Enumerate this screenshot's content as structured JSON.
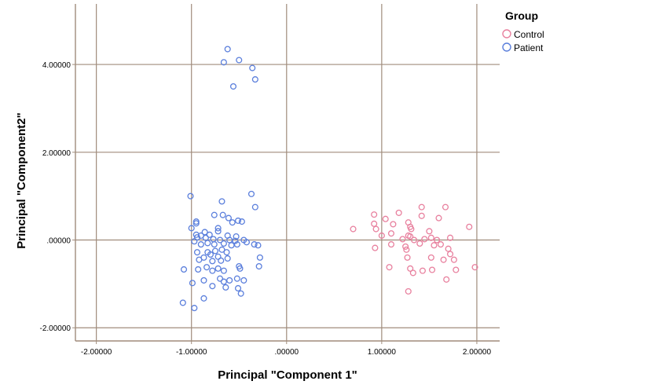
{
  "chart_data": {
    "type": "scatter",
    "xlabel": "Principal \"Component 1\"",
    "ylabel": "Principal \"Component2\"",
    "xlim": [
      -2.22,
      2.24
    ],
    "ylim": [
      -2.3,
      5.38
    ],
    "xticks": [
      -2,
      -1,
      0,
      1,
      2
    ],
    "yticks": [
      -2,
      0,
      2,
      4
    ],
    "xtick_labels": [
      "-2.00000",
      "-1.00000",
      ".00000",
      "1.00000",
      "2.00000"
    ],
    "ytick_labels": [
      "-2.00000",
      ".00000",
      "2.00000",
      "4.00000"
    ],
    "grid": true,
    "legend": {
      "title": "Group",
      "position": "top-right outside",
      "entries": [
        {
          "name": "Control",
          "color": "#e8809e"
        },
        {
          "name": "Patient",
          "color": "#5b7fdc"
        }
      ]
    },
    "series": [
      {
        "name": "Patient",
        "color": "#5b7fdc",
        "points": [
          [
            -0.62,
            4.35
          ],
          [
            -0.5,
            4.1
          ],
          [
            -0.66,
            4.05
          ],
          [
            -0.36,
            3.92
          ],
          [
            -0.33,
            3.66
          ],
          [
            -0.56,
            3.5
          ],
          [
            -1.01,
            1.0
          ],
          [
            -0.37,
            1.05
          ],
          [
            -0.68,
            0.88
          ],
          [
            -0.33,
            0.75
          ],
          [
            -0.76,
            0.57
          ],
          [
            -0.67,
            0.57
          ],
          [
            -0.61,
            0.5
          ],
          [
            -0.95,
            0.42
          ],
          [
            -0.95,
            0.38
          ],
          [
            -0.57,
            0.4
          ],
          [
            -0.51,
            0.44
          ],
          [
            -0.47,
            0.42
          ],
          [
            -1.0,
            0.27
          ],
          [
            -0.72,
            0.27
          ],
          [
            -0.72,
            0.2
          ],
          [
            -0.86,
            0.18
          ],
          [
            -0.95,
            0.12
          ],
          [
            -0.9,
            0.1
          ],
          [
            -0.81,
            0.12
          ],
          [
            -0.62,
            0.1
          ],
          [
            -0.53,
            0.08
          ],
          [
            -0.94,
            0.06
          ],
          [
            -0.85,
            0.05
          ],
          [
            -0.77,
            0.02
          ],
          [
            -0.7,
            0.0
          ],
          [
            -0.6,
            0.0
          ],
          [
            -0.54,
            -0.02
          ],
          [
            -0.45,
            0.0
          ],
          [
            -0.97,
            -0.03
          ],
          [
            -0.9,
            -0.1
          ],
          [
            -0.83,
            -0.07
          ],
          [
            -0.76,
            -0.1
          ],
          [
            -0.66,
            -0.08
          ],
          [
            -0.58,
            -0.12
          ],
          [
            -0.52,
            -0.1
          ],
          [
            -0.42,
            -0.05
          ],
          [
            -0.34,
            -0.1
          ],
          [
            -0.3,
            -0.12
          ],
          [
            -0.94,
            -0.28
          ],
          [
            -0.83,
            -0.28
          ],
          [
            -0.75,
            -0.25
          ],
          [
            -0.68,
            -0.22
          ],
          [
            -0.63,
            -0.28
          ],
          [
            -0.72,
            -0.38
          ],
          [
            -0.8,
            -0.33
          ],
          [
            -0.87,
            -0.4
          ],
          [
            -0.92,
            -0.45
          ],
          [
            -0.78,
            -0.48
          ],
          [
            -0.69,
            -0.47
          ],
          [
            -0.62,
            -0.42
          ],
          [
            -1.08,
            -0.67
          ],
          [
            -0.93,
            -0.67
          ],
          [
            -0.84,
            -0.62
          ],
          [
            -0.78,
            -0.7
          ],
          [
            -0.72,
            -0.65
          ],
          [
            -0.66,
            -0.7
          ],
          [
            -0.87,
            -0.92
          ],
          [
            -0.7,
            -0.88
          ],
          [
            -0.66,
            -0.95
          ],
          [
            -0.6,
            -0.92
          ],
          [
            -0.52,
            -0.88
          ],
          [
            -0.45,
            -0.92
          ],
          [
            -0.28,
            -0.4
          ],
          [
            -0.29,
            -0.6
          ],
          [
            -0.5,
            -0.6
          ],
          [
            -0.49,
            -0.65
          ],
          [
            -0.99,
            -0.98
          ],
          [
            -0.78,
            -1.05
          ],
          [
            -0.64,
            -1.08
          ],
          [
            -0.51,
            -1.1
          ],
          [
            -0.48,
            -1.22
          ],
          [
            -0.87,
            -1.33
          ],
          [
            -1.09,
            -1.43
          ],
          [
            -0.97,
            -1.55
          ]
        ]
      },
      {
        "name": "Control",
        "color": "#e8809e",
        "points": [
          [
            0.7,
            0.25
          ],
          [
            0.92,
            0.58
          ],
          [
            0.92,
            0.37
          ],
          [
            0.94,
            0.25
          ],
          [
            1.04,
            0.48
          ],
          [
            1.12,
            0.36
          ],
          [
            1.18,
            0.62
          ],
          [
            1.28,
            0.4
          ],
          [
            1.31,
            0.25
          ],
          [
            1.3,
            0.3
          ],
          [
            1.42,
            0.75
          ],
          [
            1.42,
            0.55
          ],
          [
            1.6,
            0.5
          ],
          [
            1.67,
            0.75
          ],
          [
            1.92,
            0.3
          ],
          [
            1.0,
            0.1
          ],
          [
            1.1,
            0.15
          ],
          [
            1.22,
            0.02
          ],
          [
            1.28,
            0.1
          ],
          [
            1.3,
            0.08
          ],
          [
            1.34,
            0.0
          ],
          [
            1.45,
            0.02
          ],
          [
            1.52,
            0.05
          ],
          [
            1.5,
            0.2
          ],
          [
            1.58,
            0.0
          ],
          [
            1.72,
            0.05
          ],
          [
            1.1,
            -0.1
          ],
          [
            1.25,
            -0.15
          ],
          [
            1.26,
            -0.22
          ],
          [
            1.4,
            -0.08
          ],
          [
            1.55,
            -0.12
          ],
          [
            1.62,
            -0.1
          ],
          [
            1.7,
            -0.2
          ],
          [
            1.27,
            -0.4
          ],
          [
            1.52,
            -0.4
          ],
          [
            1.65,
            -0.45
          ],
          [
            1.72,
            -0.32
          ],
          [
            1.76,
            -0.45
          ],
          [
            0.93,
            -0.18
          ],
          [
            1.08,
            -0.62
          ],
          [
            1.3,
            -0.65
          ],
          [
            1.33,
            -0.75
          ],
          [
            1.43,
            -0.7
          ],
          [
            1.53,
            -0.68
          ],
          [
            1.68,
            -0.9
          ],
          [
            1.78,
            -0.68
          ],
          [
            1.98,
            -0.62
          ],
          [
            1.28,
            -1.17
          ]
        ]
      }
    ]
  }
}
